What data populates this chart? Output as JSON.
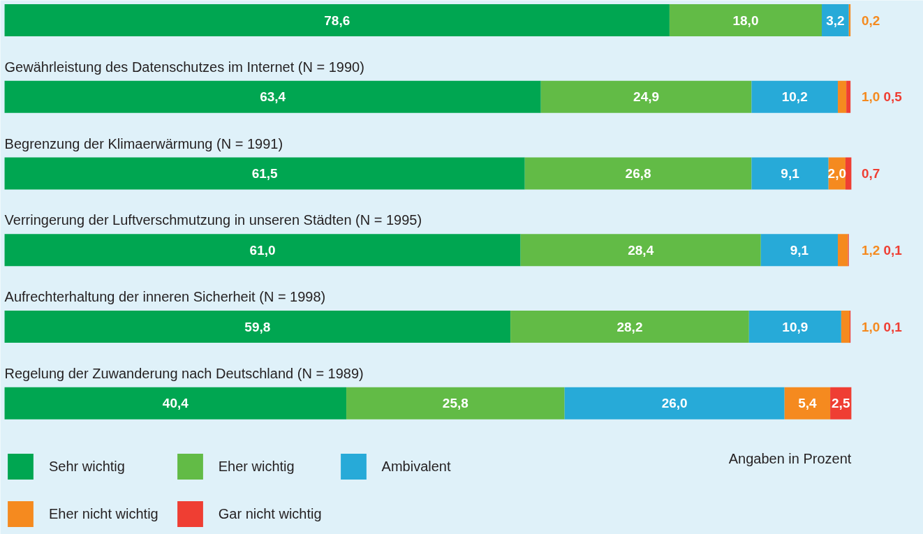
{
  "chart_data": {
    "type": "bar",
    "orientation": "horizontal",
    "stacked": true,
    "grid": false,
    "legend": "bottom left",
    "tick_labels": false,
    "categories": [
      null,
      "Gewährleistung des Datenschutzes im Internet (N = 1990)",
      "Begrenzung der Klimaerwärmung (N = 1991)",
      "Verringerung der Luftverschmutzung in unseren Städten (N = 1995)",
      "Aufrechterhaltung der inneren Sicherheit (N = 1998)",
      "Regelung der Zuwanderung nach Deutschland (N = 1989)"
    ],
    "series": [
      {
        "name": "Sehr wichtig",
        "color": "#00a651",
        "values": [
          78.6,
          63.4,
          61.5,
          61.0,
          59.8,
          40.4
        ],
        "value_labels": [
          "78,6",
          "63,4",
          "61,5",
          "61,0",
          "59,8",
          "40,4"
        ]
      },
      {
        "name": "Eher wichtig",
        "color": "#62bb46",
        "values": [
          18.0,
          24.9,
          26.8,
          28.4,
          28.2,
          25.8
        ],
        "value_labels": [
          "18,0",
          "24,9",
          "26,8",
          "28,4",
          "28,2",
          "25,8"
        ]
      },
      {
        "name": "Ambivalent",
        "color": "#27aad8",
        "values": [
          3.2,
          10.2,
          9.1,
          9.1,
          10.9,
          26.0
        ],
        "value_labels": [
          "3,2",
          "10,2",
          "9,1",
          "9,1",
          "10,9",
          "26,0"
        ]
      },
      {
        "name": "Eher nicht wichtig",
        "color": "#f58a1f",
        "values": [
          0.2,
          1.0,
          2.0,
          1.2,
          1.0,
          5.4
        ],
        "value_labels": [
          "0,2",
          "1,0",
          "2,0",
          "1,2",
          "1,0",
          "5,4"
        ]
      },
      {
        "name": "Gar nicht wichtig",
        "color": "#ef3e33",
        "values": [
          null,
          0.5,
          0.7,
          0.1,
          0.1,
          2.5
        ],
        "value_labels": [
          null,
          "0,5",
          "0,7",
          "0,1",
          "0,1",
          "2,5"
        ]
      }
    ],
    "annotations": [
      "Angaben in Prozent"
    ]
  }
}
